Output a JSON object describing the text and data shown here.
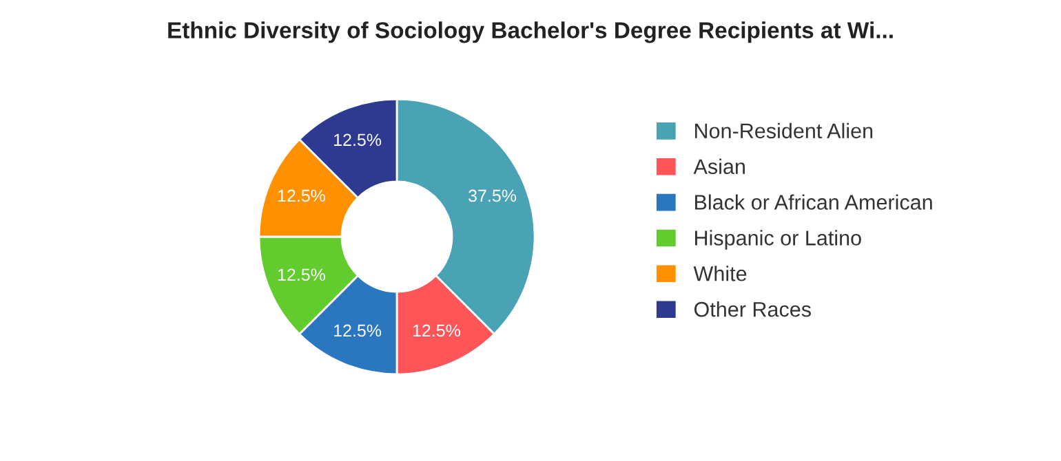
{
  "chart_data": {
    "type": "donut",
    "title": "Ethnic Diversity of Sociology Bachelor's Degree Recipients at Wi...",
    "categories": [
      "Non-Resident Alien",
      "Asian",
      "Black or African American",
      "Hispanic or Latino",
      "White",
      "Other Races"
    ],
    "values": [
      37.5,
      12.5,
      12.5,
      12.5,
      12.5,
      12.5
    ],
    "colors": [
      "#4aa3b5",
      "#fe5558",
      "#2a77c0",
      "#62cc2e",
      "#ff9000",
      "#2e3a8f"
    ],
    "value_labels": [
      "37.5%",
      "12.5%",
      "12.5%",
      "12.5%",
      "12.5%",
      "12.5%"
    ],
    "legend": "right"
  }
}
